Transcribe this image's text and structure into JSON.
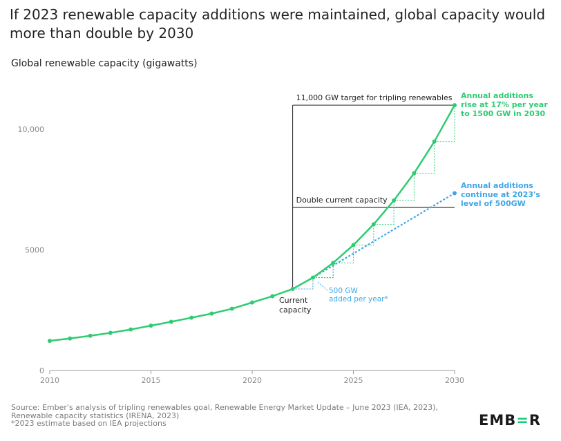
{
  "title": "If 2023 renewable capacity additions were maintained, global capacity would more than double by 2030",
  "subtitle": "Global renewable capacity (gigawatts)",
  "source_lines": [
    "Source: Ember's analysis of tripling renewables goal, Renewable Energy Market Update – June 2023 (IEA, 2023),",
    "Renewable capacity statistics (IRENA, 2023)",
    "*2023 estimate based on IEA projections"
  ],
  "logo": {
    "pre": "EMB",
    "mid": "=",
    "post": "R"
  },
  "colors": {
    "green": "#2ecc71",
    "blue": "#3ea6e6",
    "axis": "#999999",
    "text": "#222222"
  },
  "chart_data": {
    "type": "line",
    "xlim": [
      2010,
      2030
    ],
    "ylim": [
      0,
      11000
    ],
    "xticks": [
      2010,
      2015,
      2020,
      2025,
      2030
    ],
    "yticks": [
      {
        "value": 0,
        "label": "0"
      },
      {
        "value": 5000,
        "label": "5000"
      },
      {
        "value": 10000,
        "label": "10,000"
      }
    ],
    "grid": false,
    "series": [
      {
        "name": "Annual additions rise at 17% per year to 1500 GW in 2030",
        "style": "solid",
        "color": "#2ecc71",
        "x": [
          2010,
          2011,
          2012,
          2013,
          2014,
          2015,
          2016,
          2017,
          2018,
          2019,
          2020,
          2021,
          2022,
          2023,
          2024,
          2025,
          2026,
          2027,
          2028,
          2029,
          2030
        ],
        "y": [
          1230,
          1330,
          1440,
          1560,
          1700,
          1860,
          2020,
          2190,
          2360,
          2560,
          2820,
          3080,
          3380,
          3850,
          4460,
          5200,
          6060,
          7050,
          8180,
          9490,
          11000
        ]
      },
      {
        "name": "Annual additions continue at 2023's level of 500GW",
        "style": "dotted",
        "color": "#3ea6e6",
        "x": [
          2022,
          2023,
          2024,
          2025,
          2026,
          2027,
          2028,
          2029,
          2030
        ],
        "y": [
          3380,
          3850,
          4350,
          4850,
          5350,
          5850,
          6350,
          6850,
          7350
        ]
      }
    ],
    "reference_lines": [
      {
        "label": "11,000 GW target for tripling renewables",
        "value": 11000
      },
      {
        "label": "Double current capacity",
        "value": 6760
      }
    ],
    "annotations": {
      "green_label": [
        "Annual additions",
        "rise at 17% per year",
        "to 1500 GW in 2030"
      ],
      "blue_label": [
        "Annual additions",
        "continue at 2023's",
        "level of 500GW"
      ],
      "step_label": [
        "500 GW",
        "added per year*"
      ],
      "current_label": [
        "Current",
        "capacity"
      ]
    }
  }
}
